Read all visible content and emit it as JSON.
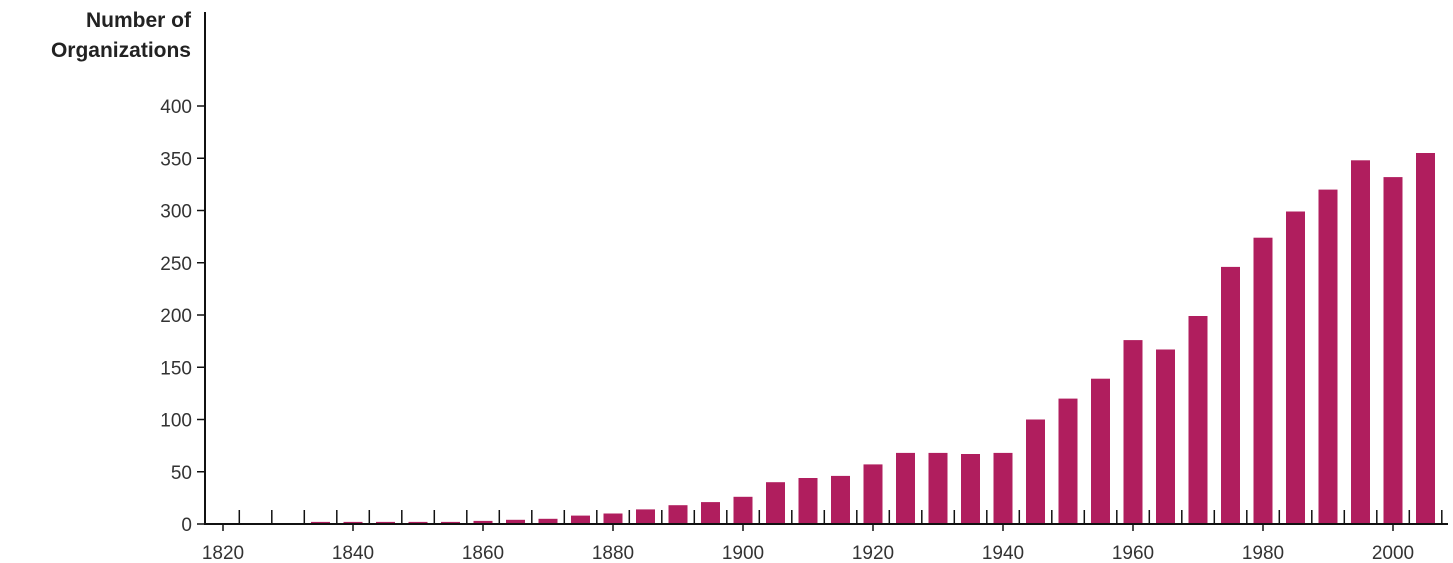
{
  "chart_data": {
    "type": "bar",
    "ylabel": "Number of Organizations",
    "ylabel_lines": [
      "Number of",
      "Organizations"
    ],
    "xlabel": "",
    "x": [
      1820,
      1825,
      1830,
      1835,
      1840,
      1845,
      1850,
      1855,
      1860,
      1865,
      1870,
      1875,
      1880,
      1885,
      1890,
      1895,
      1900,
      1905,
      1910,
      1915,
      1920,
      1925,
      1930,
      1935,
      1940,
      1945,
      1950,
      1955,
      1960,
      1965,
      1970,
      1975,
      1980,
      1985,
      1990,
      1995,
      2000,
      2005
    ],
    "values": [
      1,
      1,
      1,
      2,
      2,
      2,
      2,
      2,
      3,
      4,
      5,
      8,
      10,
      14,
      18,
      21,
      26,
      40,
      44,
      46,
      57,
      68,
      68,
      67,
      68,
      100,
      120,
      139,
      176,
      167,
      199,
      246,
      274,
      299,
      320,
      348,
      332,
      355
    ],
    "ylim": [
      0,
      400
    ],
    "yticks": [
      0,
      50,
      100,
      150,
      200,
      250,
      300,
      350,
      400
    ],
    "xticks": [
      1820,
      1840,
      1860,
      1880,
      1900,
      1920,
      1940,
      1960,
      1980,
      2000
    ],
    "grid": false,
    "legend": "none",
    "bar_color": "#B01E5E",
    "axis_color": "#111111"
  }
}
